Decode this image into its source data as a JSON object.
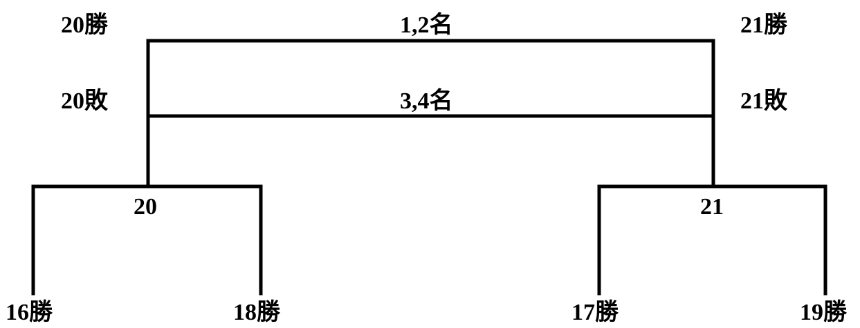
{
  "labels": {
    "winner_20": "20勝",
    "final_title": "1,2名",
    "winner_21": "21勝",
    "loser_20": "20敗",
    "third_place_title": "3,4名",
    "loser_21": "21敗",
    "match_20": "20",
    "match_21": "21",
    "winner_16": "16勝",
    "winner_18": "18勝",
    "winner_17": "17勝",
    "winner_19": "19勝"
  }
}
